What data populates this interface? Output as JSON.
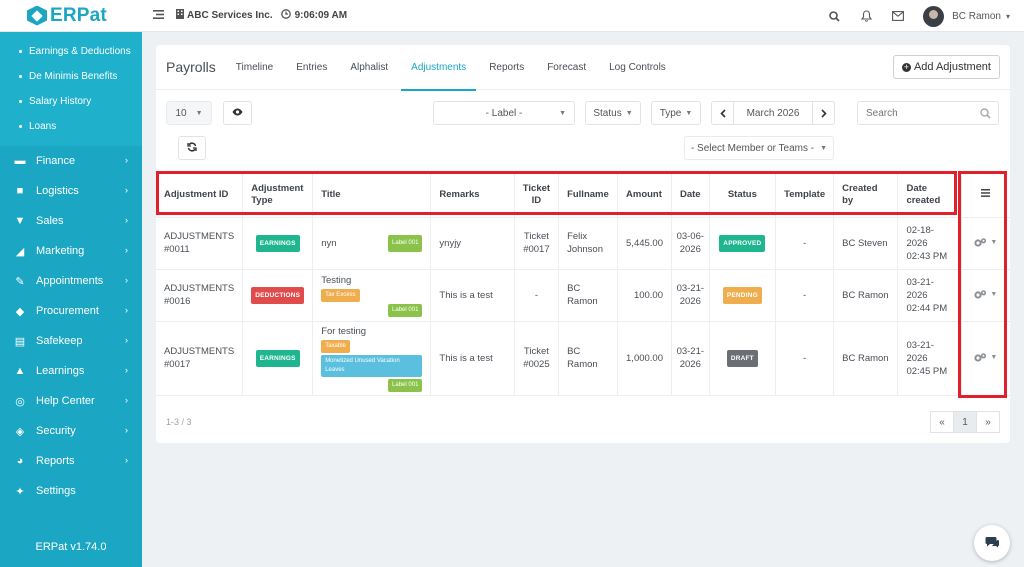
{
  "app": {
    "name": "ERPat",
    "version": "ERPat v1.74.0"
  },
  "topbar": {
    "company": "ABC Services Inc.",
    "time": "9:06:09 AM",
    "user": "BC Ramon"
  },
  "sidebar": {
    "submenu": [
      "Earnings & Deductions",
      "De Minimis Benefits",
      "Salary History",
      "Loans"
    ],
    "menu": [
      {
        "label": "Finance",
        "icon": "money-icon"
      },
      {
        "label": "Logistics",
        "icon": "truck-icon"
      },
      {
        "label": "Sales",
        "icon": "cart-icon"
      },
      {
        "label": "Marketing",
        "icon": "chart-icon"
      },
      {
        "label": "Appointments",
        "icon": "edit-icon"
      },
      {
        "label": "Procurement",
        "icon": "cubes-icon"
      },
      {
        "label": "Safekeep",
        "icon": "archive-icon"
      },
      {
        "label": "Learnings",
        "icon": "graduation-icon"
      },
      {
        "label": "Help Center",
        "icon": "lifebuoy-icon"
      },
      {
        "label": "Security",
        "icon": "shield-icon"
      },
      {
        "label": "Reports",
        "icon": "pie-icon"
      },
      {
        "label": "Settings",
        "icon": "wrench-icon"
      }
    ]
  },
  "page": {
    "title": "Payrolls",
    "tabs": [
      "Timeline",
      "Entries",
      "Alphalist",
      "Adjustments",
      "Reports",
      "Forecast",
      "Log Controls"
    ],
    "active_tab": "Adjustments",
    "add_button": "Add Adjustment"
  },
  "filters": {
    "page_size": "10",
    "label": "- Label -",
    "status": "Status",
    "type": "Type",
    "month": "March 2026",
    "search_placeholder": "Search",
    "member": "- Select Member or Teams -"
  },
  "table": {
    "headers": [
      "Adjustment ID",
      "Adjustment Type",
      "Title",
      "Remarks",
      "Ticket ID",
      "Fullname",
      "Amount",
      "Date",
      "Status",
      "Template",
      "Created by",
      "Date created"
    ],
    "rows": [
      {
        "id": "ADJUSTMENTS #0011",
        "type": "EARNINGS",
        "title": "nyn",
        "labels": [
          "Label 001"
        ],
        "remarks": "ynyjy",
        "ticket": "Ticket #0017",
        "fullname": "Felix Johnson",
        "amount": "5,445.00",
        "date": "03-06-2026",
        "status": "APPROVED",
        "template": "-",
        "created_by": "BC Steven",
        "date_created": "02-18-2026 02:43 PM"
      },
      {
        "id": "ADJUSTMENTS #0016",
        "type": "DEDUCTIONS",
        "title": "Testing",
        "labels": [
          "Tax Excess",
          "Label 001"
        ],
        "remarks": "This is a test",
        "ticket": "-",
        "fullname": "BC Ramon",
        "amount": "100.00",
        "date": "03-21-2026",
        "status": "PENDING",
        "template": "-",
        "created_by": "BC Ramon",
        "date_created": "03-21-2026 02:44 PM"
      },
      {
        "id": "ADJUSTMENTS #0017",
        "type": "EARNINGS",
        "title": "For testing",
        "labels": [
          "Taxable",
          "Monetized Unused Vacation Leaves",
          "Label 001"
        ],
        "remarks": "This is a test",
        "ticket": "Ticket #0025",
        "fullname": "BC Ramon",
        "amount": "1,000.00",
        "date": "03-21-2026",
        "status": "DRAFT",
        "template": "-",
        "created_by": "BC Ramon",
        "date_created": "03-21-2026 02:45 PM"
      }
    ]
  },
  "footer": {
    "count": "1-3 / 3",
    "page": "1",
    "prev": "«",
    "next": "»"
  },
  "colors": {
    "accent": "#1ba7c4",
    "highlight": "#e2202b",
    "earnings": "#1fb58f",
    "deductions": "#e04b4b",
    "pending": "#f0ad4e",
    "draft": "#6b6f73"
  }
}
